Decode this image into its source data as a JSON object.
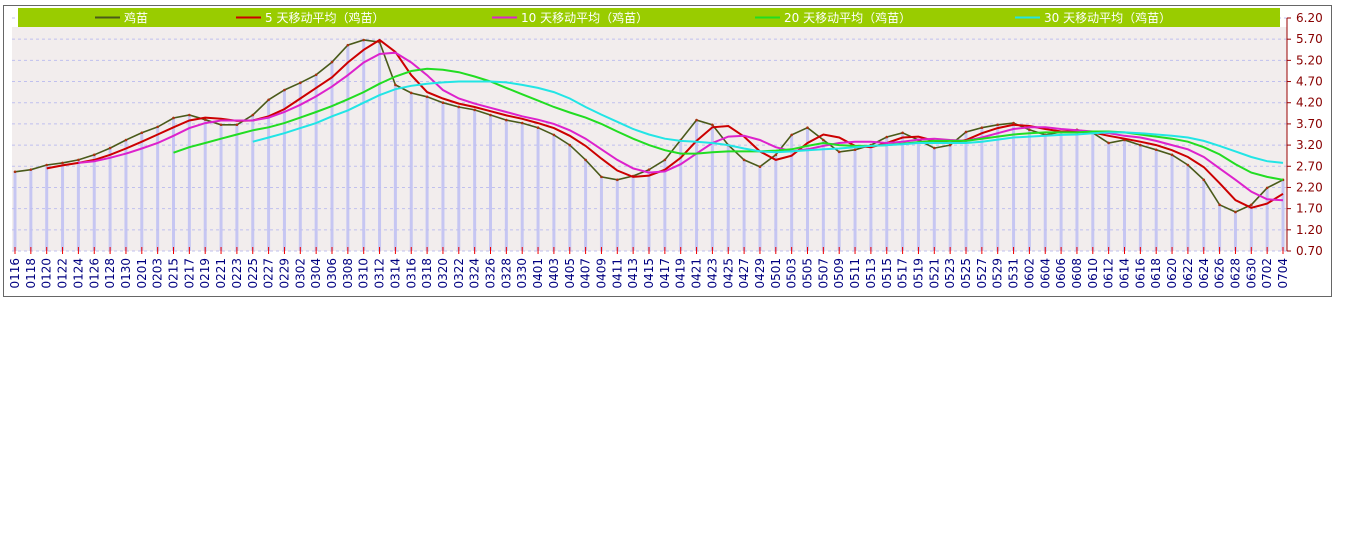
{
  "chart_data": {
    "type": "line",
    "categories": [
      "0116",
      "0118",
      "0120",
      "0122",
      "0124",
      "0126",
      "0128",
      "0130",
      "0201",
      "0203",
      "0215",
      "0217",
      "0219",
      "0221",
      "0223",
      "0225",
      "0227",
      "0229",
      "0302",
      "0304",
      "0306",
      "0308",
      "0310",
      "0312",
      "0314",
      "0316",
      "0318",
      "0320",
      "0322",
      "0324",
      "0326",
      "0328",
      "0330",
      "0401",
      "0403",
      "0405",
      "0407",
      "0409",
      "0411",
      "0413",
      "0415",
      "0417",
      "0419",
      "0421",
      "0423",
      "0425",
      "0427",
      "0429",
      "0501",
      "0503",
      "0505",
      "0507",
      "0509",
      "0511",
      "0513",
      "0515",
      "0517",
      "0519",
      "0521",
      "0523",
      "0525",
      "0527",
      "0529",
      "0531",
      "0602",
      "0604",
      "0606",
      "0608",
      "0610",
      "0612",
      "0614",
      "0616",
      "0618",
      "0620",
      "0622",
      "0624",
      "0626",
      "0628",
      "0630",
      "0702",
      "0704"
    ],
    "series": [
      {
        "name": "鸡苗",
        "color": "#4a5a1a",
        "values": [
          2.57,
          2.62,
          2.73,
          2.78,
          2.85,
          2.97,
          3.13,
          3.32,
          3.49,
          3.63,
          3.84,
          3.91,
          3.8,
          3.68,
          3.68,
          3.91,
          4.27,
          4.5,
          4.67,
          4.86,
          5.16,
          5.56,
          5.68,
          5.63,
          4.62,
          4.43,
          4.34,
          4.2,
          4.1,
          4.03,
          3.91,
          3.79,
          3.72,
          3.61,
          3.44,
          3.2,
          2.85,
          2.45,
          2.38,
          2.47,
          2.62,
          2.85,
          3.32,
          3.79,
          3.68,
          3.2,
          2.85,
          2.69,
          2.97,
          3.44,
          3.61,
          3.32,
          3.04,
          3.09,
          3.2,
          3.39,
          3.49,
          3.32,
          3.13,
          3.2,
          3.51,
          3.61,
          3.68,
          3.72,
          3.56,
          3.44,
          3.51,
          3.56,
          3.49,
          3.25,
          3.32,
          3.2,
          3.09,
          2.97,
          2.73,
          2.38,
          1.79,
          1.62,
          1.79,
          2.19,
          2.38
        ]
      },
      {
        "name": "5 天移动平均（鸡苗）",
        "color": "#cc0000",
        "values": [
          null,
          null,
          2.65,
          2.72,
          2.78,
          2.85,
          2.97,
          3.12,
          3.28,
          3.45,
          3.62,
          3.78,
          3.85,
          3.82,
          3.77,
          3.78,
          3.88,
          4.05,
          4.3,
          4.55,
          4.8,
          5.15,
          5.45,
          5.68,
          5.4,
          4.85,
          4.45,
          4.3,
          4.18,
          4.1,
          4.0,
          3.9,
          3.82,
          3.72,
          3.6,
          3.42,
          3.18,
          2.88,
          2.6,
          2.45,
          2.48,
          2.62,
          2.9,
          3.3,
          3.62,
          3.65,
          3.4,
          3.05,
          2.85,
          2.95,
          3.25,
          3.45,
          3.38,
          3.18,
          3.15,
          3.25,
          3.38,
          3.4,
          3.3,
          3.25,
          3.32,
          3.48,
          3.6,
          3.68,
          3.65,
          3.58,
          3.52,
          3.52,
          3.5,
          3.42,
          3.35,
          3.28,
          3.2,
          3.08,
          2.92,
          2.68,
          2.3,
          1.9,
          1.72,
          1.82,
          2.05
        ]
      },
      {
        "name": "10 天移动平均（鸡苗）",
        "color": "#dd22cc",
        "values": [
          null,
          null,
          null,
          null,
          2.78,
          2.82,
          2.9,
          3.0,
          3.12,
          3.25,
          3.42,
          3.6,
          3.72,
          3.78,
          3.78,
          3.78,
          3.85,
          3.98,
          4.15,
          4.35,
          4.58,
          4.85,
          5.15,
          5.35,
          5.38,
          5.15,
          4.85,
          4.5,
          4.3,
          4.18,
          4.08,
          3.98,
          3.88,
          3.8,
          3.7,
          3.55,
          3.35,
          3.1,
          2.85,
          2.65,
          2.55,
          2.58,
          2.75,
          3.0,
          3.25,
          3.4,
          3.42,
          3.32,
          3.15,
          3.05,
          3.1,
          3.18,
          3.25,
          3.28,
          3.28,
          3.25,
          3.28,
          3.33,
          3.35,
          3.32,
          3.3,
          3.38,
          3.48,
          3.58,
          3.62,
          3.62,
          3.58,
          3.55,
          3.52,
          3.48,
          3.42,
          3.38,
          3.3,
          3.2,
          3.1,
          2.92,
          2.65,
          2.38,
          2.1,
          1.92,
          1.9
        ]
      },
      {
        "name": "20 天移动平均（鸡苗）",
        "color": "#22dd22",
        "values": [
          null,
          null,
          null,
          null,
          null,
          null,
          null,
          null,
          null,
          null,
          3.02,
          3.15,
          3.25,
          3.35,
          3.45,
          3.55,
          3.62,
          3.72,
          3.85,
          3.98,
          4.12,
          4.28,
          4.45,
          4.65,
          4.82,
          4.95,
          5.0,
          4.98,
          4.92,
          4.82,
          4.7,
          4.55,
          4.4,
          4.25,
          4.1,
          3.97,
          3.85,
          3.7,
          3.52,
          3.35,
          3.2,
          3.08,
          3.0,
          3.0,
          3.03,
          3.05,
          3.05,
          3.05,
          3.07,
          3.1,
          3.18,
          3.25,
          3.2,
          3.18,
          3.18,
          3.2,
          3.23,
          3.27,
          3.3,
          3.3,
          3.3,
          3.35,
          3.4,
          3.45,
          3.48,
          3.5,
          3.5,
          3.5,
          3.52,
          3.52,
          3.5,
          3.45,
          3.4,
          3.35,
          3.28,
          3.15,
          2.98,
          2.75,
          2.55,
          2.45,
          2.38
        ]
      },
      {
        "name": "30 天移动平均（鸡苗）",
        "color": "#22e5e5",
        "values": [
          null,
          null,
          null,
          null,
          null,
          null,
          null,
          null,
          null,
          null,
          null,
          null,
          null,
          null,
          null,
          3.28,
          3.38,
          3.48,
          3.6,
          3.72,
          3.88,
          4.02,
          4.2,
          4.38,
          4.52,
          4.6,
          4.65,
          4.68,
          4.7,
          4.7,
          4.7,
          4.68,
          4.62,
          4.55,
          4.45,
          4.3,
          4.1,
          3.92,
          3.75,
          3.58,
          3.45,
          3.35,
          3.3,
          3.28,
          3.25,
          3.2,
          3.12,
          3.05,
          3.03,
          3.05,
          3.08,
          3.1,
          3.12,
          3.15,
          3.18,
          3.2,
          3.22,
          3.25,
          3.25,
          3.25,
          3.25,
          3.28,
          3.33,
          3.38,
          3.4,
          3.42,
          3.44,
          3.45,
          3.48,
          3.5,
          3.5,
          3.48,
          3.45,
          3.42,
          3.38,
          3.3,
          3.18,
          3.05,
          2.92,
          2.82,
          2.78
        ]
      }
    ],
    "ylim": [
      0.7,
      6.2
    ],
    "yticks": [
      {
        "value": 0.7,
        "label": "0.70"
      },
      {
        "value": 1.2,
        "label": "1.20"
      },
      {
        "value": 1.7,
        "label": "1.70"
      },
      {
        "value": 2.2,
        "label": "2.20"
      },
      {
        "value": 2.7,
        "label": "2.70"
      },
      {
        "value": 3.2,
        "label": "3.20"
      },
      {
        "value": 3.7,
        "label": "3.70"
      },
      {
        "value": 4.2,
        "label": "4.20"
      },
      {
        "value": 4.7,
        "label": "4.70"
      },
      {
        "value": 5.2,
        "label": "5.20"
      },
      {
        "value": 5.7,
        "label": "5.70"
      },
      {
        "value": 6.2,
        "label": "6.20"
      }
    ],
    "grid": true,
    "legend": "top"
  }
}
